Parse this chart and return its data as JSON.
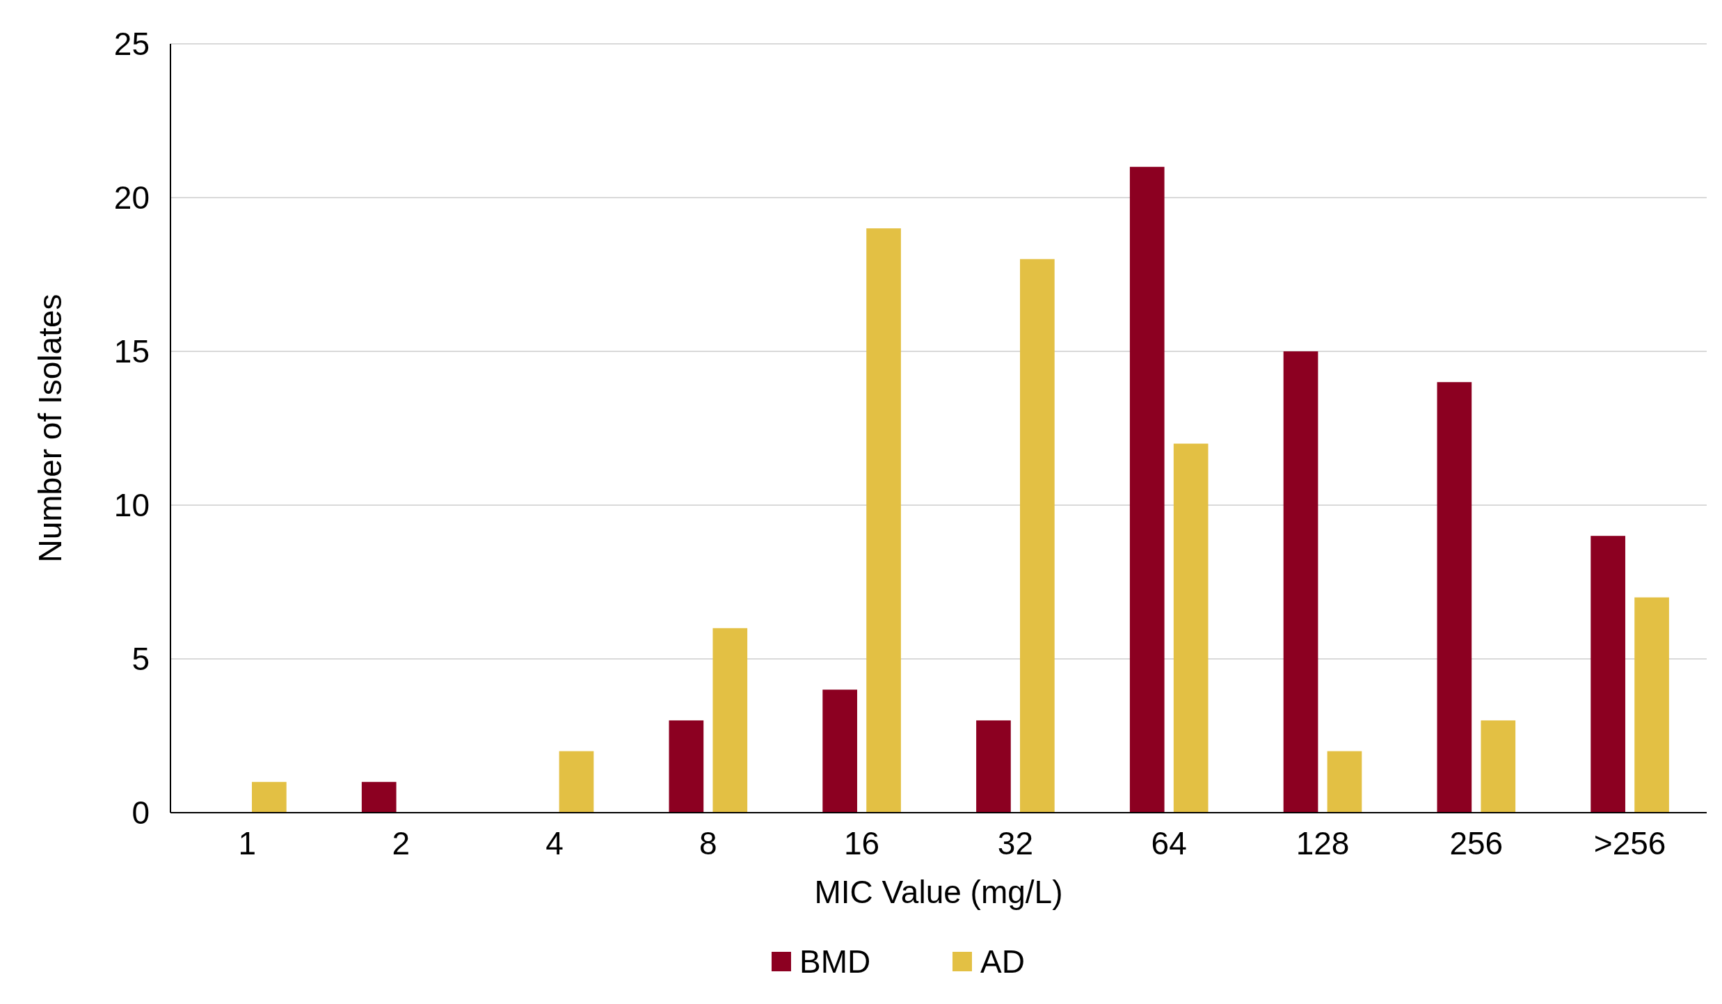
{
  "chart_data": {
    "type": "bar",
    "xlabel": "MIC Value (mg/L)",
    "ylabel": "Number of Isolates",
    "categories": [
      "1",
      "2",
      "4",
      "8",
      "16",
      "32",
      "64",
      "128",
      "256",
      ">256"
    ],
    "series": [
      {
        "name": "BMD",
        "color": "#8c0021",
        "values": [
          0,
          1,
          0,
          3,
          4,
          3,
          21,
          15,
          14,
          9
        ]
      },
      {
        "name": "AD",
        "color": "#e3c044",
        "values": [
          1,
          0,
          2,
          6,
          19,
          18,
          12,
          2,
          3,
          7
        ]
      }
    ],
    "ylim": [
      0,
      25
    ],
    "yticks": [
      0,
      5,
      10,
      15,
      20,
      25
    ],
    "grid": "y",
    "legend": "bottom"
  }
}
